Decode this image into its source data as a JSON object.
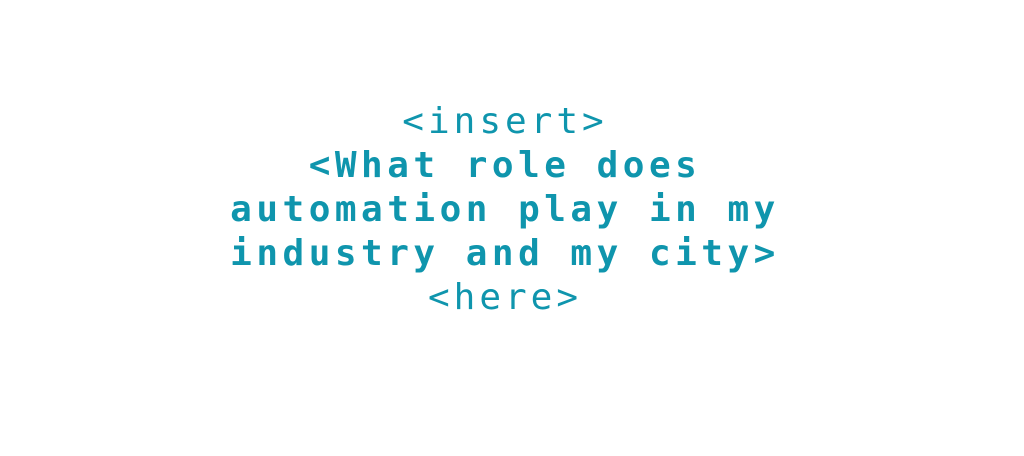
{
  "accent_color": "#0f95ad",
  "background_color": "#ffffff",
  "lines": [
    "<insert>",
    "<What role does",
    "automation play in my",
    "industry and my city>",
    "<here>"
  ]
}
